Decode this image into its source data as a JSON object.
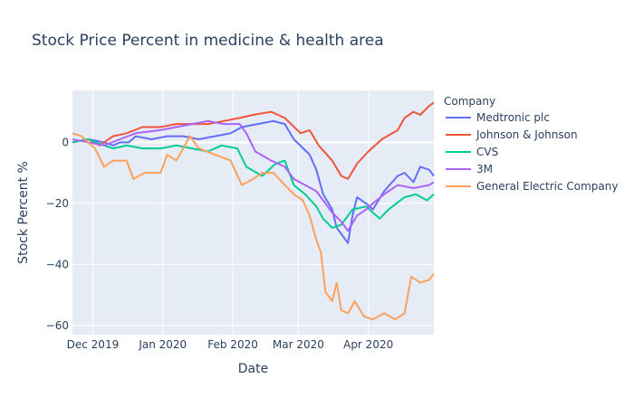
{
  "chart_data": {
    "type": "line",
    "title": "Stock Price Percent in medicine & health area",
    "xlabel": "Date",
    "ylabel": "Stock Percent %",
    "legend_title": "Company",
    "legend_placement": "right",
    "xlim": [
      "2019-11-22",
      "2020-04-30"
    ],
    "ylim": [
      -63,
      17
    ],
    "x_ticks": [
      {
        "date": "2019-12-01",
        "label": "Dec 2019"
      },
      {
        "date": "2020-01-01",
        "label": "Jan 2020"
      },
      {
        "date": "2020-02-01",
        "label": "Feb 2020"
      },
      {
        "date": "2020-03-01",
        "label": "Mar 2020"
      },
      {
        "date": "2020-04-01",
        "label": "Apr 2020"
      }
    ],
    "y_ticks": [
      0,
      -20,
      -40,
      -60
    ],
    "grid": true,
    "colors": {
      "plot_bg": "#e5ecf6",
      "grid": "#ffffff",
      "text": "#2a3f5f"
    },
    "series": [
      {
        "name": "Medtronic plc",
        "color": "#636efa",
        "points": [
          [
            "2019-11-22",
            0
          ],
          [
            "2019-11-29",
            1
          ],
          [
            "2019-12-06",
            0
          ],
          [
            "2019-12-10",
            -1
          ],
          [
            "2019-12-13",
            0
          ],
          [
            "2019-12-17",
            0
          ],
          [
            "2019-12-20",
            2
          ],
          [
            "2019-12-27",
            1
          ],
          [
            "2020-01-03",
            2
          ],
          [
            "2020-01-10",
            2
          ],
          [
            "2020-01-17",
            1
          ],
          [
            "2020-01-24",
            2
          ],
          [
            "2020-01-31",
            3
          ],
          [
            "2020-02-05",
            5
          ],
          [
            "2020-02-12",
            6
          ],
          [
            "2020-02-19",
            7
          ],
          [
            "2020-02-24",
            6
          ],
          [
            "2020-02-28",
            1
          ],
          [
            "2020-03-06",
            -4
          ],
          [
            "2020-03-09",
            -9
          ],
          [
            "2020-03-12",
            -17
          ],
          [
            "2020-03-16",
            -22
          ],
          [
            "2020-03-18",
            -28
          ],
          [
            "2020-03-20",
            -30
          ],
          [
            "2020-03-23",
            -33
          ],
          [
            "2020-03-25",
            -24
          ],
          [
            "2020-03-27",
            -18
          ],
          [
            "2020-03-31",
            -20
          ],
          [
            "2020-04-03",
            -22
          ],
          [
            "2020-04-08",
            -16
          ],
          [
            "2020-04-14",
            -11
          ],
          [
            "2020-04-17",
            -10
          ],
          [
            "2020-04-21",
            -13
          ],
          [
            "2020-04-24",
            -8
          ],
          [
            "2020-04-28",
            -9
          ],
          [
            "2020-04-30",
            -11
          ]
        ]
      },
      {
        "name": "Johnson & Johnson",
        "color": "#ef553b",
        "points": [
          [
            "2019-11-22",
            0
          ],
          [
            "2019-11-29",
            1
          ],
          [
            "2019-12-04",
            -1
          ],
          [
            "2019-12-10",
            2
          ],
          [
            "2019-12-16",
            3
          ],
          [
            "2019-12-23",
            5
          ],
          [
            "2019-12-31",
            5
          ],
          [
            "2020-01-07",
            6
          ],
          [
            "2020-01-14",
            6
          ],
          [
            "2020-01-21",
            6
          ],
          [
            "2020-01-28",
            7
          ],
          [
            "2020-02-04",
            8
          ],
          [
            "2020-02-10",
            9
          ],
          [
            "2020-02-18",
            10
          ],
          [
            "2020-02-24",
            8
          ],
          [
            "2020-03-02",
            3
          ],
          [
            "2020-03-06",
            4
          ],
          [
            "2020-03-10",
            -1
          ],
          [
            "2020-03-16",
            -6
          ],
          [
            "2020-03-20",
            -11
          ],
          [
            "2020-03-23",
            -12
          ],
          [
            "2020-03-27",
            -7
          ],
          [
            "2020-04-01",
            -3
          ],
          [
            "2020-04-07",
            1
          ],
          [
            "2020-04-14",
            4
          ],
          [
            "2020-04-17",
            8
          ],
          [
            "2020-04-21",
            10
          ],
          [
            "2020-04-24",
            9
          ],
          [
            "2020-04-28",
            12
          ],
          [
            "2020-04-30",
            13
          ]
        ]
      },
      {
        "name": "CVS",
        "color": "#00cc96",
        "points": [
          [
            "2019-11-22",
            0
          ],
          [
            "2019-11-29",
            1
          ],
          [
            "2019-12-06",
            -1
          ],
          [
            "2019-12-10",
            -2
          ],
          [
            "2019-12-16",
            -1
          ],
          [
            "2019-12-23",
            -2
          ],
          [
            "2019-12-31",
            -2
          ],
          [
            "2020-01-07",
            -1
          ],
          [
            "2020-01-14",
            -2
          ],
          [
            "2020-01-21",
            -3
          ],
          [
            "2020-01-27",
            -1
          ],
          [
            "2020-02-03",
            -2
          ],
          [
            "2020-02-07",
            -8
          ],
          [
            "2020-02-14",
            -11
          ],
          [
            "2020-02-20",
            -7
          ],
          [
            "2020-02-24",
            -6
          ],
          [
            "2020-02-28",
            -14
          ],
          [
            "2020-03-04",
            -17
          ],
          [
            "2020-03-09",
            -21
          ],
          [
            "2020-03-12",
            -25
          ],
          [
            "2020-03-16",
            -28
          ],
          [
            "2020-03-20",
            -27
          ],
          [
            "2020-03-25",
            -22
          ],
          [
            "2020-03-31",
            -21
          ],
          [
            "2020-04-06",
            -25
          ],
          [
            "2020-04-10",
            -22
          ],
          [
            "2020-04-17",
            -18
          ],
          [
            "2020-04-22",
            -17
          ],
          [
            "2020-04-27",
            -19
          ],
          [
            "2020-04-30",
            -17
          ]
        ]
      },
      {
        "name": "3M",
        "color": "#ab63fa",
        "points": [
          [
            "2019-11-22",
            1
          ],
          [
            "2019-11-29",
            0
          ],
          [
            "2019-12-06",
            -1
          ],
          [
            "2019-12-13",
            1
          ],
          [
            "2019-12-20",
            3
          ],
          [
            "2019-12-31",
            4
          ],
          [
            "2020-01-07",
            5
          ],
          [
            "2020-01-14",
            6
          ],
          [
            "2020-01-21",
            7
          ],
          [
            "2020-01-28",
            6
          ],
          [
            "2020-02-04",
            6
          ],
          [
            "2020-02-07",
            3
          ],
          [
            "2020-02-11",
            -3
          ],
          [
            "2020-02-18",
            -6
          ],
          [
            "2020-02-24",
            -8
          ],
          [
            "2020-02-28",
            -12
          ],
          [
            "2020-03-04",
            -14
          ],
          [
            "2020-03-09",
            -16
          ],
          [
            "2020-03-12",
            -19
          ],
          [
            "2020-03-16",
            -23
          ],
          [
            "2020-03-20",
            -26
          ],
          [
            "2020-03-23",
            -29
          ],
          [
            "2020-03-27",
            -24
          ],
          [
            "2020-03-31",
            -22
          ],
          [
            "2020-04-03",
            -20
          ],
          [
            "2020-04-08",
            -17
          ],
          [
            "2020-04-14",
            -14
          ],
          [
            "2020-04-21",
            -15
          ],
          [
            "2020-04-28",
            -14
          ],
          [
            "2020-04-30",
            -13
          ]
        ]
      },
      {
        "name": "General Electric Company",
        "color": "#ffa15a",
        "points": [
          [
            "2019-11-22",
            3
          ],
          [
            "2019-11-26",
            2
          ],
          [
            "2019-12-02",
            -2
          ],
          [
            "2019-12-06",
            -8
          ],
          [
            "2019-12-10",
            -6
          ],
          [
            "2019-12-16",
            -6
          ],
          [
            "2019-12-19",
            -12
          ],
          [
            "2019-12-24",
            -10
          ],
          [
            "2019-12-31",
            -10
          ],
          [
            "2020-01-03",
            -4
          ],
          [
            "2020-01-07",
            -6
          ],
          [
            "2020-01-13",
            2
          ],
          [
            "2020-01-17",
            -2
          ],
          [
            "2020-01-24",
            -4
          ],
          [
            "2020-01-31",
            -6
          ],
          [
            "2020-02-05",
            -14
          ],
          [
            "2020-02-10",
            -12
          ],
          [
            "2020-02-14",
            -10
          ],
          [
            "2020-02-19",
            -10
          ],
          [
            "2020-02-24",
            -14
          ],
          [
            "2020-02-28",
            -17
          ],
          [
            "2020-03-03",
            -19
          ],
          [
            "2020-03-06",
            -24
          ],
          [
            "2020-03-09",
            -32
          ],
          [
            "2020-03-11",
            -36
          ],
          [
            "2020-03-13",
            -49
          ],
          [
            "2020-03-16",
            -52
          ],
          [
            "2020-03-18",
            -46
          ],
          [
            "2020-03-20",
            -55
          ],
          [
            "2020-03-23",
            -56
          ],
          [
            "2020-03-26",
            -52
          ],
          [
            "2020-03-30",
            -57
          ],
          [
            "2020-04-03",
            -58
          ],
          [
            "2020-04-08",
            -56
          ],
          [
            "2020-04-13",
            -58
          ],
          [
            "2020-04-17",
            -56
          ],
          [
            "2020-04-20",
            -44
          ],
          [
            "2020-04-24",
            -46
          ],
          [
            "2020-04-28",
            -45
          ],
          [
            "2020-04-30",
            -43
          ]
        ]
      }
    ]
  }
}
